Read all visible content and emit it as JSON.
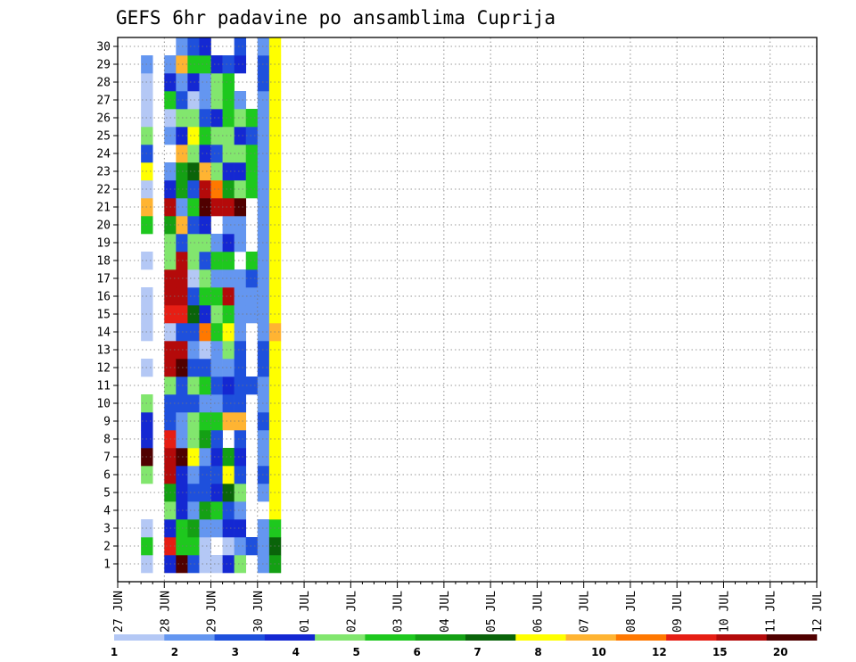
{
  "chart_data": {
    "type": "heatmap",
    "title": "GEFS 6hr padavine po ansamblima Cuprija",
    "ylim": [
      0,
      30
    ],
    "y_ticks": [
      "1",
      "2",
      "3",
      "4",
      "5",
      "6",
      "7",
      "8",
      "9",
      "10",
      "11",
      "12",
      "13",
      "14",
      "15",
      "16",
      "17",
      "18",
      "19",
      "20",
      "21",
      "22",
      "23",
      "24",
      "25",
      "26",
      "27",
      "28",
      "29",
      "30"
    ],
    "x_ticks": [
      "27 JUN",
      "28 JUN",
      "29 JUN",
      "30 JUN",
      "01 JUL",
      "02 JUL",
      "03 JUL",
      "04 JUL",
      "05 JUL",
      "06 JUL",
      "07 JUL",
      "08 JUL",
      "09 JUL",
      "10 JUL",
      "11 JUL",
      "12 JUL"
    ],
    "x_steps_per_day": 4,
    "grid": true,
    "colorbar": {
      "labels": [
        "1",
        "2",
        "3",
        "4",
        "5",
        "6",
        "7",
        "8",
        "10",
        "12",
        "15",
        "20"
      ],
      "colors": [
        "#b4c8f5",
        "#6496f0",
        "#1e50dc",
        "#1428d2",
        "#82e66e",
        "#1ec81e",
        "#14a014",
        "#0a640a",
        "#ffff00",
        "#ffb432",
        "#ff7800",
        "#e61e14",
        "#b40a0a",
        "#500000"
      ]
    },
    "cells": [
      [
        1,
        2,
        0
      ],
      [
        2,
        2,
        5
      ],
      [
        3,
        2,
        0
      ],
      [
        6,
        2,
        4
      ],
      [
        7,
        2,
        13
      ],
      [
        8,
        2,
        3
      ],
      [
        9,
        2,
        3
      ],
      [
        10,
        2,
        4
      ],
      [
        12,
        2,
        0
      ],
      [
        14,
        2,
        0
      ],
      [
        15,
        2,
        0
      ],
      [
        16,
        2,
        0
      ],
      [
        18,
        2,
        0
      ],
      [
        20,
        2,
        5
      ],
      [
        21,
        2,
        9
      ],
      [
        22,
        2,
        0
      ],
      [
        23,
        2,
        8
      ],
      [
        24,
        2,
        2
      ],
      [
        25,
        2,
        4
      ],
      [
        26,
        2,
        0
      ],
      [
        27,
        2,
        0
      ],
      [
        28,
        2,
        0
      ],
      [
        29,
        2,
        1
      ],
      [
        1,
        4,
        3
      ],
      [
        2,
        4,
        11
      ],
      [
        3,
        4,
        3
      ],
      [
        4,
        4,
        4
      ],
      [
        5,
        4,
        6
      ],
      [
        6,
        4,
        12
      ],
      [
        7,
        4,
        12
      ],
      [
        8,
        4,
        11
      ],
      [
        9,
        4,
        2
      ],
      [
        10,
        4,
        2
      ],
      [
        11,
        4,
        4
      ],
      [
        12,
        4,
        12
      ],
      [
        13,
        4,
        12
      ],
      [
        14,
        4,
        0
      ],
      [
        15,
        4,
        11
      ],
      [
        16,
        4,
        12
      ],
      [
        17,
        4,
        12
      ],
      [
        18,
        4,
        4
      ],
      [
        19,
        4,
        4
      ],
      [
        20,
        4,
        6
      ],
      [
        21,
        4,
        12
      ],
      [
        22,
        4,
        3
      ],
      [
        23,
        4,
        1
      ],
      [
        25,
        4,
        1
      ],
      [
        26,
        4,
        0
      ],
      [
        27,
        4,
        5
      ],
      [
        28,
        4,
        3
      ],
      [
        29,
        4,
        1
      ],
      [
        1,
        5,
        13
      ],
      [
        2,
        5,
        5
      ],
      [
        3,
        5,
        5
      ],
      [
        4,
        5,
        3
      ],
      [
        5,
        5,
        3
      ],
      [
        6,
        5,
        3
      ],
      [
        7,
        5,
        13
      ],
      [
        8,
        5,
        1
      ],
      [
        9,
        5,
        1
      ],
      [
        10,
        5,
        2
      ],
      [
        11,
        5,
        2
      ],
      [
        12,
        5,
        13
      ],
      [
        13,
        5,
        12
      ],
      [
        14,
        5,
        2
      ],
      [
        15,
        5,
        11
      ],
      [
        16,
        5,
        12
      ],
      [
        17,
        5,
        12
      ],
      [
        18,
        5,
        12
      ],
      [
        19,
        5,
        2
      ],
      [
        20,
        5,
        9
      ],
      [
        21,
        5,
        1
      ],
      [
        22,
        5,
        6
      ],
      [
        23,
        5,
        6
      ],
      [
        24,
        5,
        9
      ],
      [
        25,
        5,
        3
      ],
      [
        26,
        5,
        4
      ],
      [
        27,
        5,
        2
      ],
      [
        28,
        5,
        1
      ],
      [
        29,
        5,
        9
      ],
      [
        30,
        5,
        1
      ],
      [
        1,
        6,
        2
      ],
      [
        2,
        6,
        5
      ],
      [
        3,
        6,
        6
      ],
      [
        4,
        6,
        1
      ],
      [
        5,
        6,
        2
      ],
      [
        6,
        6,
        1
      ],
      [
        7,
        6,
        8
      ],
      [
        8,
        6,
        4
      ],
      [
        9,
        6,
        4
      ],
      [
        10,
        6,
        2
      ],
      [
        11,
        6,
        4
      ],
      [
        12,
        6,
        2
      ],
      [
        13,
        6,
        1
      ],
      [
        14,
        6,
        2
      ],
      [
        15,
        6,
        7
      ],
      [
        16,
        6,
        2
      ],
      [
        17,
        6,
        0
      ],
      [
        18,
        6,
        4
      ],
      [
        19,
        6,
        4
      ],
      [
        20,
        6,
        2
      ],
      [
        21,
        6,
        5
      ],
      [
        22,
        6,
        2
      ],
      [
        23,
        6,
        7
      ],
      [
        24,
        6,
        4
      ],
      [
        25,
        6,
        8
      ],
      [
        26,
        6,
        4
      ],
      [
        27,
        6,
        0
      ],
      [
        28,
        6,
        3
      ],
      [
        29,
        6,
        5
      ],
      [
        30,
        6,
        2
      ],
      [
        1,
        7,
        0
      ],
      [
        2,
        7,
        0
      ],
      [
        3,
        7,
        1
      ],
      [
        4,
        7,
        6
      ],
      [
        5,
        7,
        2
      ],
      [
        6,
        7,
        2
      ],
      [
        7,
        7,
        1
      ],
      [
        8,
        7,
        6
      ],
      [
        9,
        7,
        5
      ],
      [
        10,
        7,
        1
      ],
      [
        11,
        7,
        5
      ],
      [
        12,
        7,
        2
      ],
      [
        13,
        7,
        0
      ],
      [
        14,
        7,
        10
      ],
      [
        15,
        7,
        3
      ],
      [
        16,
        7,
        5
      ],
      [
        17,
        7,
        4
      ],
      [
        18,
        7,
        2
      ],
      [
        19,
        7,
        4
      ],
      [
        20,
        7,
        3
      ],
      [
        21,
        7,
        13
      ],
      [
        22,
        7,
        12
      ],
      [
        23,
        7,
        9
      ],
      [
        24,
        7,
        3
      ],
      [
        25,
        7,
        5
      ],
      [
        26,
        7,
        2
      ],
      [
        27,
        7,
        1
      ],
      [
        28,
        7,
        1
      ],
      [
        29,
        7,
        5
      ],
      [
        30,
        7,
        3
      ],
      [
        1,
        8,
        0
      ],
      [
        3,
        8,
        1
      ],
      [
        4,
        8,
        5
      ],
      [
        5,
        8,
        3
      ],
      [
        6,
        8,
        2
      ],
      [
        7,
        8,
        3
      ],
      [
        8,
        8,
        2
      ],
      [
        9,
        8,
        5
      ],
      [
        10,
        8,
        1
      ],
      [
        11,
        8,
        2
      ],
      [
        12,
        8,
        1
      ],
      [
        13,
        8,
        1
      ],
      [
        14,
        8,
        5
      ],
      [
        15,
        8,
        4
      ],
      [
        16,
        8,
        5
      ],
      [
        17,
        8,
        1
      ],
      [
        18,
        8,
        5
      ],
      [
        19,
        8,
        1
      ],
      [
        21,
        8,
        12
      ],
      [
        22,
        8,
        10
      ],
      [
        23,
        8,
        4
      ],
      [
        24,
        8,
        2
      ],
      [
        25,
        8,
        4
      ],
      [
        26,
        8,
        3
      ],
      [
        27,
        8,
        4
      ],
      [
        28,
        8,
        4
      ],
      [
        29,
        8,
        3
      ],
      [
        1,
        9,
        3
      ],
      [
        2,
        9,
        0
      ],
      [
        3,
        9,
        3
      ],
      [
        4,
        9,
        2
      ],
      [
        5,
        9,
        7
      ],
      [
        6,
        9,
        8
      ],
      [
        7,
        9,
        6
      ],
      [
        9,
        9,
        9
      ],
      [
        10,
        9,
        2
      ],
      [
        11,
        9,
        3
      ],
      [
        12,
        9,
        1
      ],
      [
        13,
        9,
        4
      ],
      [
        14,
        9,
        8
      ],
      [
        15,
        9,
        5
      ],
      [
        16,
        9,
        12
      ],
      [
        17,
        9,
        1
      ],
      [
        18,
        9,
        5
      ],
      [
        19,
        9,
        3
      ],
      [
        20,
        9,
        1
      ],
      [
        21,
        9,
        12
      ],
      [
        22,
        9,
        6
      ],
      [
        23,
        9,
        3
      ],
      [
        24,
        9,
        4
      ],
      [
        25,
        9,
        4
      ],
      [
        26,
        9,
        5
      ],
      [
        27,
        9,
        5
      ],
      [
        28,
        9,
        5
      ],
      [
        29,
        9,
        2
      ],
      [
        1,
        10,
        4
      ],
      [
        2,
        10,
        1
      ],
      [
        3,
        10,
        3
      ],
      [
        4,
        10,
        1
      ],
      [
        5,
        10,
        4
      ],
      [
        6,
        10,
        2
      ],
      [
        7,
        10,
        3
      ],
      [
        8,
        10,
        2
      ],
      [
        9,
        10,
        9
      ],
      [
        10,
        10,
        2
      ],
      [
        11,
        10,
        2
      ],
      [
        12,
        10,
        2
      ],
      [
        13,
        10,
        2
      ],
      [
        14,
        10,
        1
      ],
      [
        15,
        10,
        1
      ],
      [
        16,
        10,
        1
      ],
      [
        17,
        10,
        1
      ],
      [
        19,
        10,
        1
      ],
      [
        20,
        10,
        1
      ],
      [
        21,
        10,
        13
      ],
      [
        22,
        10,
        4
      ],
      [
        23,
        10,
        3
      ],
      [
        24,
        10,
        4
      ],
      [
        25,
        10,
        3
      ],
      [
        26,
        10,
        4
      ],
      [
        27,
        10,
        1
      ],
      [
        29,
        10,
        3
      ],
      [
        30,
        10,
        2
      ],
      [
        2,
        11,
        2
      ],
      [
        11,
        11,
        2
      ],
      [
        15,
        11,
        1
      ],
      [
        16,
        11,
        1
      ],
      [
        17,
        11,
        2
      ],
      [
        18,
        11,
        5
      ],
      [
        22,
        11,
        5
      ],
      [
        23,
        11,
        5
      ],
      [
        24,
        11,
        5
      ],
      [
        25,
        11,
        2
      ],
      [
        26,
        11,
        5
      ],
      [
        1,
        12,
        1
      ],
      [
        2,
        12,
        1
      ],
      [
        3,
        12,
        1
      ],
      [
        5,
        12,
        1
      ],
      [
        6,
        12,
        2
      ],
      [
        7,
        12,
        1
      ],
      [
        8,
        12,
        1
      ],
      [
        9,
        12,
        2
      ],
      [
        10,
        12,
        1
      ],
      [
        11,
        12,
        1
      ],
      [
        12,
        12,
        2
      ],
      [
        13,
        12,
        2
      ],
      [
        14,
        12,
        1
      ],
      [
        15,
        12,
        1
      ],
      [
        16,
        12,
        1
      ],
      [
        17,
        12,
        1
      ],
      [
        18,
        12,
        1
      ],
      [
        19,
        12,
        1
      ],
      [
        20,
        12,
        1
      ],
      [
        21,
        12,
        1
      ],
      [
        22,
        12,
        1
      ],
      [
        23,
        12,
        1
      ],
      [
        24,
        12,
        1
      ],
      [
        25,
        12,
        1
      ],
      [
        26,
        12,
        1
      ],
      [
        27,
        12,
        1
      ],
      [
        28,
        12,
        2
      ],
      [
        29,
        12,
        2
      ],
      [
        30,
        12,
        1
      ],
      [
        1,
        13,
        6
      ],
      [
        2,
        13,
        7
      ],
      [
        3,
        13,
        5
      ],
      [
        4,
        13,
        8
      ],
      [
        5,
        13,
        8
      ],
      [
        6,
        13,
        8
      ],
      [
        7,
        13,
        8
      ],
      [
        8,
        13,
        8
      ],
      [
        9,
        13,
        8
      ],
      [
        10,
        13,
        8
      ],
      [
        11,
        13,
        8
      ],
      [
        12,
        13,
        8
      ],
      [
        13,
        13,
        8
      ],
      [
        14,
        13,
        9
      ],
      [
        15,
        13,
        8
      ],
      [
        16,
        13,
        8
      ],
      [
        17,
        13,
        8
      ],
      [
        18,
        13,
        8
      ],
      [
        19,
        13,
        8
      ],
      [
        20,
        13,
        8
      ],
      [
        21,
        13,
        8
      ],
      [
        22,
        13,
        8
      ],
      [
        23,
        13,
        8
      ],
      [
        24,
        13,
        8
      ],
      [
        25,
        13,
        8
      ],
      [
        26,
        13,
        8
      ],
      [
        27,
        13,
        8
      ],
      [
        28,
        13,
        8
      ],
      [
        29,
        13,
        8
      ],
      [
        30,
        13,
        8
      ]
    ]
  }
}
